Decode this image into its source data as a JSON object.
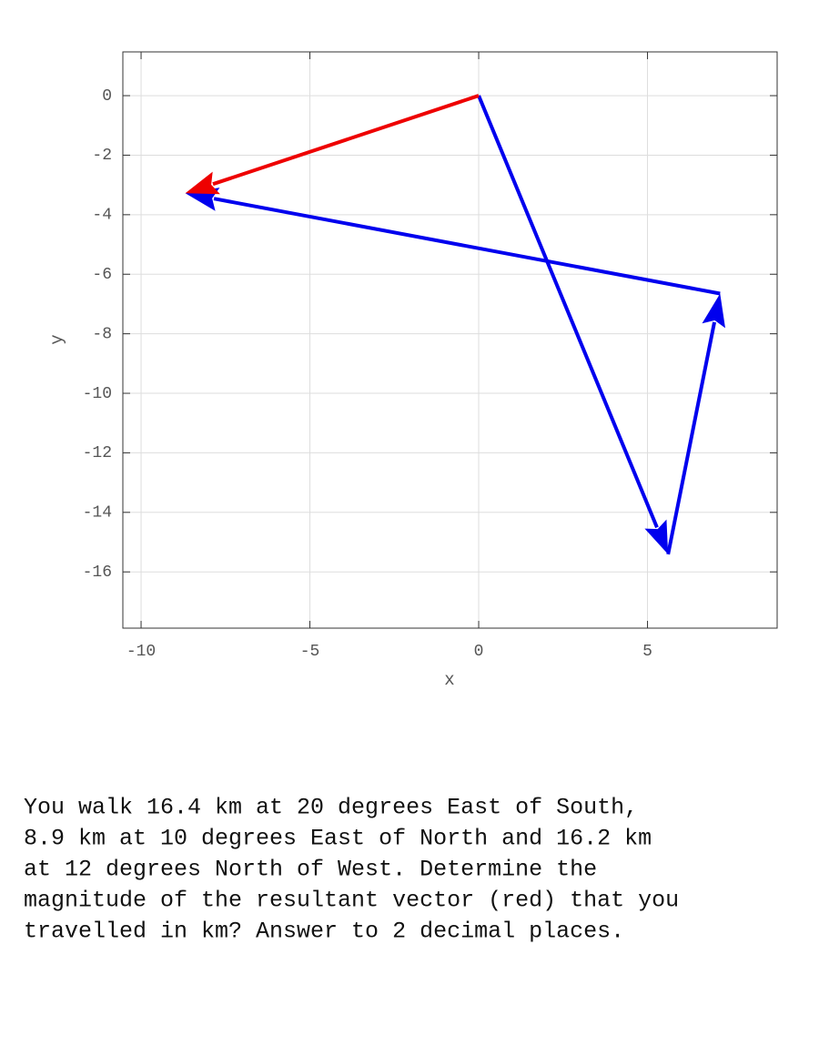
{
  "chart_data": {
    "type": "vector",
    "x_label": "x",
    "y_label": "y",
    "xlim": [
      -10.54,
      8.84
    ],
    "ylim": [
      -17.89,
      1.47
    ],
    "xticks": [
      -10,
      -5,
      0,
      5
    ],
    "yticks": [
      0,
      -2,
      -4,
      -6,
      -8,
      -10,
      -12,
      -14,
      -16
    ],
    "grid": true,
    "vectors": [
      {
        "color": "#0000ee",
        "x": [
          0,
          5.61
        ],
        "values": [
          0,
          -15.41
        ]
      },
      {
        "color": "#0000ee",
        "x": [
          5.61,
          7.15
        ],
        "values": [
          -15.41,
          -6.65
        ]
      },
      {
        "color": "#0000ee",
        "x": [
          7.15,
          -8.69
        ],
        "values": [
          -6.65,
          -3.28
        ]
      },
      {
        "color": "#ee0000",
        "x": [
          0,
          -8.69
        ],
        "values": [
          0,
          -3.28
        ]
      }
    ]
  },
  "question": [
    "You walk 16.4 km at 20 degrees East of South,",
    "8.9 km at 10 degrees East of North and 16.2 km",
    "at 12 degrees North of West.  Determine the",
    "magnitude of the resultant vector (red) that you",
    "travelled in km? Answer to 2 decimal places."
  ]
}
